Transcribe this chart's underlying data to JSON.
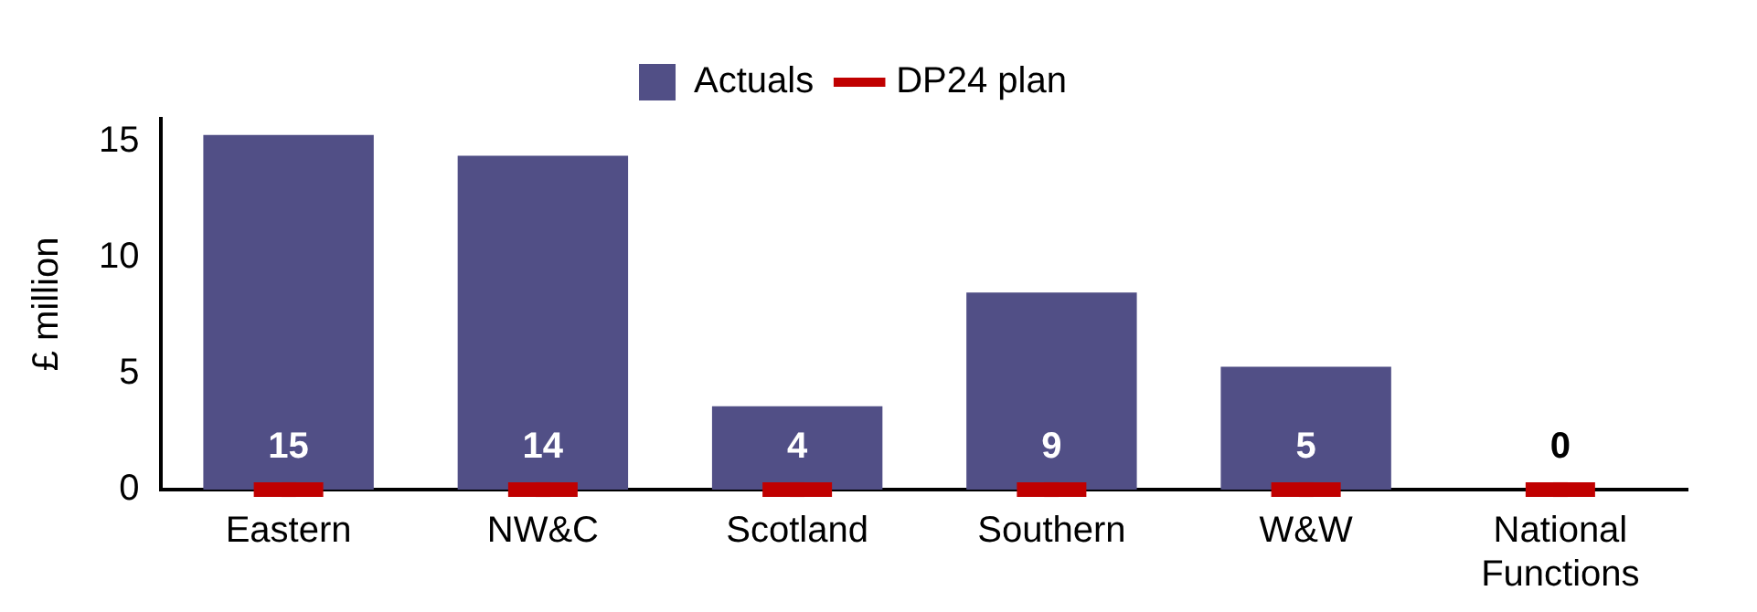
{
  "chart_data": {
    "type": "bar",
    "ylabel": "£ million",
    "categories": [
      "Eastern",
      "NW&C",
      "Scotland",
      "Southern",
      "W&W",
      "National Functions"
    ],
    "series": [
      {
        "name": "Actuals",
        "type": "bar",
        "color": "#514f86",
        "values": [
          15.3,
          14.4,
          3.6,
          8.5,
          5.3,
          0
        ],
        "value_labels": [
          "15",
          "14",
          "4",
          "9",
          "5",
          "0"
        ]
      },
      {
        "name": "DP24 plan",
        "type": "scatter",
        "color": "#c00000",
        "values": [
          0,
          0,
          0,
          0,
          0,
          0
        ]
      }
    ],
    "ylim": [
      0,
      16
    ],
    "yticks": [
      0,
      5,
      10,
      15
    ],
    "grid": false,
    "legend": "top"
  }
}
